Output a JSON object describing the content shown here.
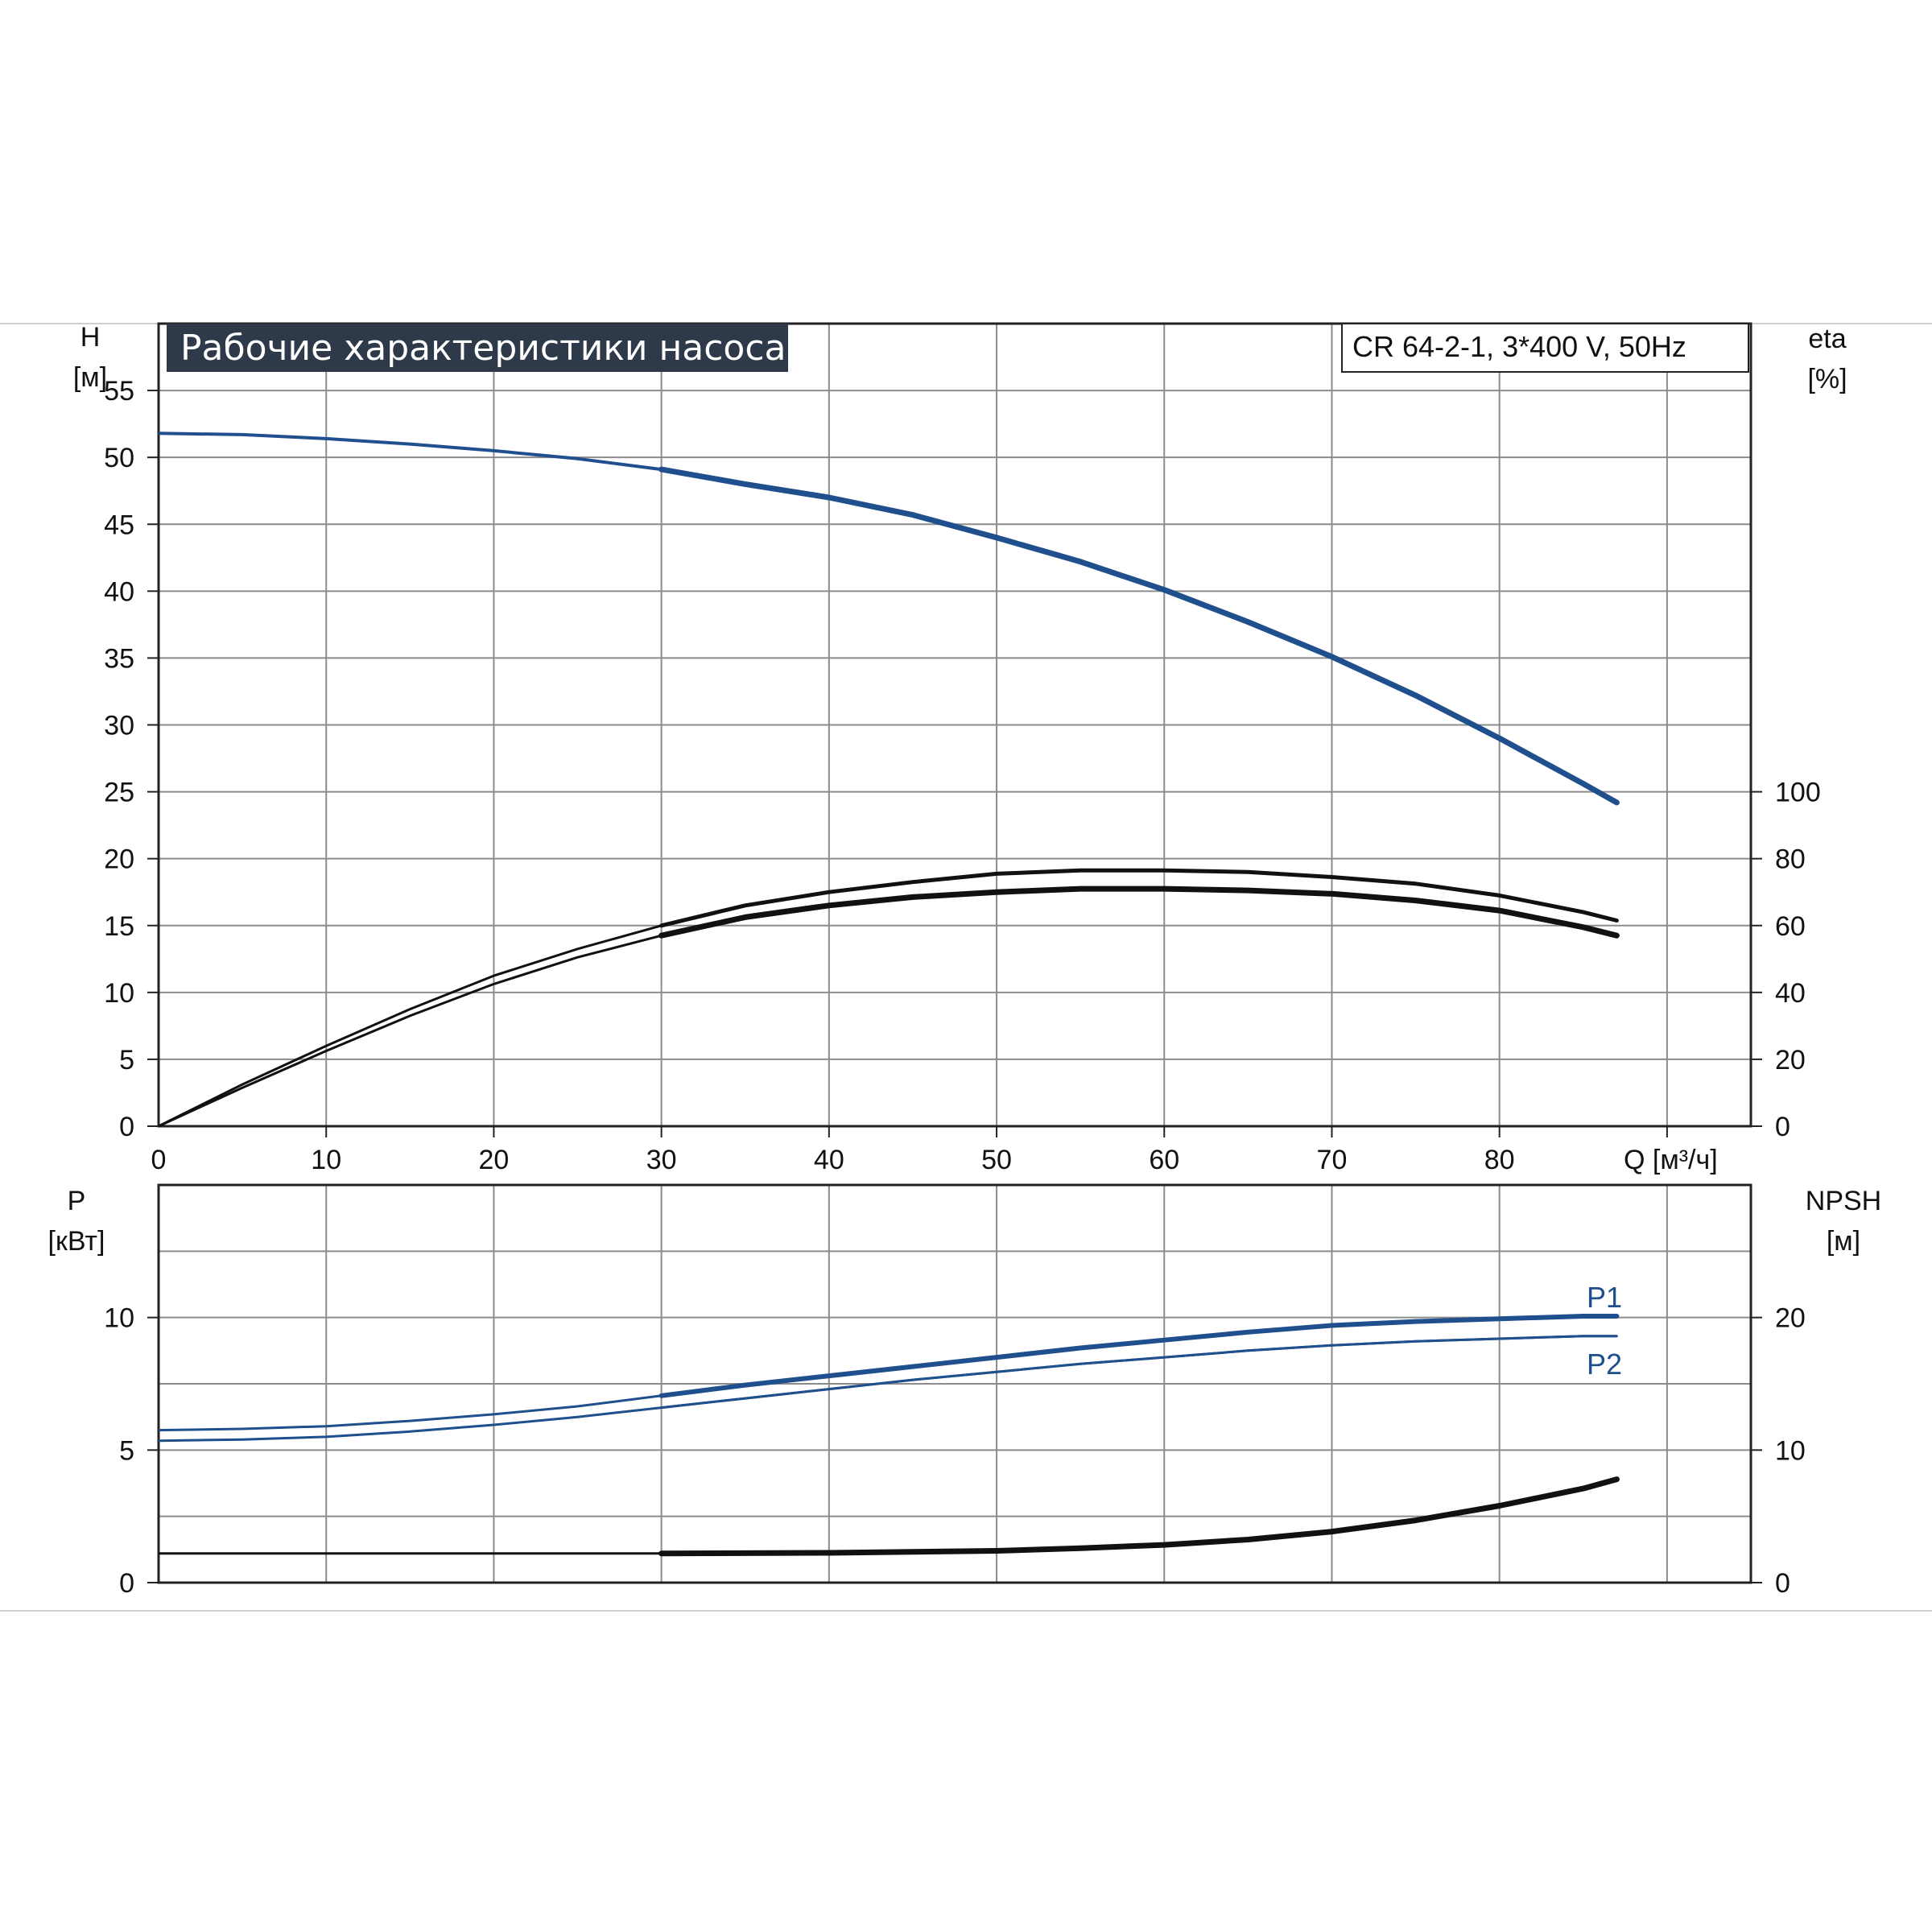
{
  "colors": {
    "blue": "#1f4f8c",
    "black": "#111111",
    "grid": "#8c8c8c",
    "title_bg": "#2e3a4a"
  },
  "chart_data": [
    {
      "type": "line",
      "title": "Рабочие характеристики насоса",
      "subtitle": "CR 64-2-1, 3*400 V, 50Hz",
      "xlabel": "Q [м³/ч]",
      "ylabel_top": "H",
      "ylabel_unit": "[м]",
      "y2label_top": "eta",
      "y2label_unit": "[%]",
      "xlim": [
        0,
        95
      ],
      "ylim": [
        0,
        60
      ],
      "y2lim": [
        0,
        100
      ],
      "x_ticks": [
        "0",
        "10",
        "20",
        "30",
        "40",
        "50",
        "60",
        "70",
        "80"
      ],
      "y_ticks": [
        "0",
        "5",
        "10",
        "15",
        "20",
        "25",
        "30",
        "35",
        "40",
        "45",
        "50",
        "55"
      ],
      "y2_ticks": [
        "0",
        "20",
        "40",
        "60",
        "80",
        "100"
      ],
      "grid": true,
      "series": [
        {
          "axis": "left",
          "color": "#1f4f8c",
          "x": [
            0,
            5,
            10,
            15,
            20,
            25,
            30,
            35,
            40,
            45,
            50,
            55,
            60,
            65,
            70,
            75,
            80,
            85,
            87
          ],
          "values": [
            51.8,
            51.7,
            51.4,
            51.0,
            50.5,
            49.9,
            49.1,
            48.0,
            47.0,
            45.7,
            44.0,
            42.2,
            40.1,
            37.7,
            35.1,
            32.2,
            29.0,
            25.6,
            24.2
          ]
        },
        {
          "axis": "right",
          "color": "#111111",
          "x": [
            0,
            5,
            10,
            15,
            20,
            25,
            30,
            35,
            40,
            45,
            50,
            55,
            60,
            65,
            70,
            75,
            80,
            85,
            87
          ],
          "values": [
            0,
            12.5,
            24,
            35,
            45,
            53,
            60,
            66,
            70,
            73,
            75.5,
            76.5,
            76.5,
            76,
            74.5,
            72.5,
            69,
            64,
            61.5
          ]
        },
        {
          "axis": "right",
          "color": "#111111",
          "x": [
            0,
            5,
            10,
            15,
            20,
            25,
            30,
            35,
            40,
            45,
            50,
            55,
            60,
            65,
            70,
            75,
            80,
            85,
            87
          ],
          "values": [
            0,
            11.5,
            22.5,
            33,
            42.5,
            50.5,
            57,
            62.5,
            66,
            68.5,
            70,
            71,
            71,
            70.5,
            69.5,
            67.5,
            64.5,
            59.5,
            57
          ]
        }
      ]
    },
    {
      "type": "line",
      "ylabel_top": "P",
      "ylabel_unit": "[кВт]",
      "y2label_top": "NPSH",
      "y2label_unit": "[м]",
      "xlim": [
        0,
        95
      ],
      "ylim": [
        0,
        15
      ],
      "y2lim": [
        0,
        30
      ],
      "y_ticks": [
        "0",
        "5",
        "10"
      ],
      "y2_ticks": [
        "0",
        "10",
        "20"
      ],
      "grid": true,
      "series": [
        {
          "name": "P1",
          "axis": "left",
          "color": "#1f4f8c",
          "x": [
            0,
            5,
            10,
            15,
            20,
            25,
            30,
            35,
            40,
            45,
            50,
            55,
            60,
            65,
            70,
            75,
            80,
            85,
            87
          ],
          "values": [
            5.75,
            5.8,
            5.9,
            6.1,
            6.35,
            6.65,
            7.05,
            7.45,
            7.8,
            8.15,
            8.5,
            8.85,
            9.15,
            9.45,
            9.7,
            9.85,
            9.95,
            10.05,
            10.05
          ]
        },
        {
          "name": "P2",
          "axis": "left",
          "color": "#1f4f8c",
          "x": [
            0,
            5,
            10,
            15,
            20,
            25,
            30,
            35,
            40,
            45,
            50,
            55,
            60,
            65,
            70,
            75,
            80,
            85,
            87
          ],
          "values": [
            5.35,
            5.4,
            5.5,
            5.7,
            5.95,
            6.25,
            6.6,
            6.95,
            7.3,
            7.65,
            7.95,
            8.25,
            8.5,
            8.75,
            8.95,
            9.1,
            9.2,
            9.3,
            9.3
          ]
        },
        {
          "axis": "right",
          "color": "#111111",
          "x": [
            0,
            10,
            20,
            30,
            40,
            50,
            55,
            60,
            65,
            70,
            75,
            80,
            85,
            87
          ],
          "values": [
            2.2,
            2.2,
            2.2,
            2.2,
            2.25,
            2.4,
            2.6,
            2.85,
            3.25,
            3.85,
            4.7,
            5.8,
            7.1,
            7.8
          ]
        }
      ]
    }
  ]
}
